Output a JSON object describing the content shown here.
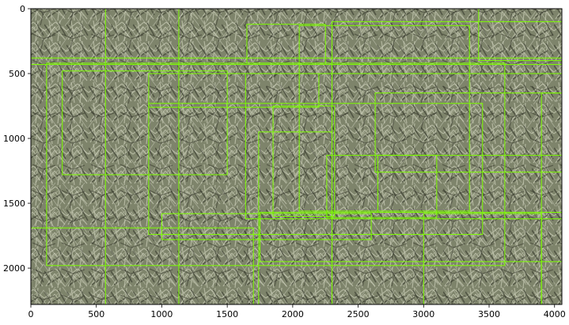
{
  "figure": {
    "background_color": "#ffffff",
    "axes_edge_color": "#000000"
  },
  "image": {
    "content": "aerial photo of a pineapple field",
    "dominant_colors": [
      "#8a9075",
      "#5f6650",
      "#b9bca7",
      "#3a3d2e"
    ],
    "annotation_color": "#7cfc00"
  },
  "axes": {
    "x_ticks": [
      {
        "value": 0,
        "label": "0"
      },
      {
        "value": 500,
        "label": "500"
      },
      {
        "value": 1000,
        "label": "1000"
      },
      {
        "value": 1500,
        "label": "1500"
      },
      {
        "value": 2000,
        "label": "2000"
      },
      {
        "value": 2500,
        "label": "2500"
      },
      {
        "value": 3000,
        "label": "3000"
      },
      {
        "value": 3500,
        "label": "3500"
      },
      {
        "value": 4000,
        "label": "4000"
      }
    ],
    "y_ticks": [
      {
        "value": 0,
        "label": "0"
      },
      {
        "value": 500,
        "label": "500"
      },
      {
        "value": 1000,
        "label": "1000"
      },
      {
        "value": 1500,
        "label": "1500"
      },
      {
        "value": 2000,
        "label": "2000"
      }
    ],
    "x_range": [
      0,
      4056
    ],
    "y_range": [
      2280,
      0
    ],
    "y_inverted": true,
    "grid": false
  },
  "boxes": [
    {
      "x0": 0,
      "y0": 380,
      "x1": 4056,
      "y1": 430
    },
    {
      "x0": 120,
      "y0": 420,
      "x1": 3620,
      "y1": 1980
    },
    {
      "x0": 240,
      "y0": 480,
      "x1": 1500,
      "y1": 1280
    },
    {
      "x0": 570,
      "y0": 0,
      "x1": 1130,
      "y1": 2280
    },
    {
      "x0": 1650,
      "y0": 120,
      "x1": 2250,
      "y1": 420
    },
    {
      "x0": 2050,
      "y0": 130,
      "x1": 3350,
      "y1": 1560
    },
    {
      "x0": 900,
      "y0": 730,
      "x1": 3450,
      "y1": 1740
    },
    {
      "x0": 1850,
      "y0": 750,
      "x1": 2320,
      "y1": 1600
    },
    {
      "x0": 2300,
      "y0": 100,
      "x1": 4056,
      "y1": 2280
    },
    {
      "x0": 2630,
      "y0": 650,
      "x1": 4056,
      "y1": 1260
    },
    {
      "x0": 2650,
      "y0": 1130,
      "x1": 4056,
      "y1": 1570
    },
    {
      "x0": 1750,
      "y0": 1570,
      "x1": 4056,
      "y1": 1950
    },
    {
      "x0": 3000,
      "y0": 1580,
      "x1": 3900,
      "y1": 2280
    },
    {
      "x0": 0,
      "y0": 1690,
      "x1": 1700,
      "y1": 2280
    },
    {
      "x0": 1000,
      "y0": 1580,
      "x1": 2600,
      "y1": 1780
    },
    {
      "x0": 1640,
      "y0": 500,
      "x1": 4056,
      "y1": 1620
    },
    {
      "x0": 3420,
      "y0": 0,
      "x1": 4056,
      "y1": 400
    },
    {
      "x0": 3900,
      "y0": 650,
      "x1": 4056,
      "y1": 2280
    },
    {
      "x0": 900,
      "y0": 500,
      "x1": 2200,
      "y1": 760
    },
    {
      "x0": 1740,
      "y0": 950,
      "x1": 2300,
      "y1": 2280
    },
    {
      "x0": 2260,
      "y0": 1130,
      "x1": 3100,
      "y1": 1610
    }
  ]
}
